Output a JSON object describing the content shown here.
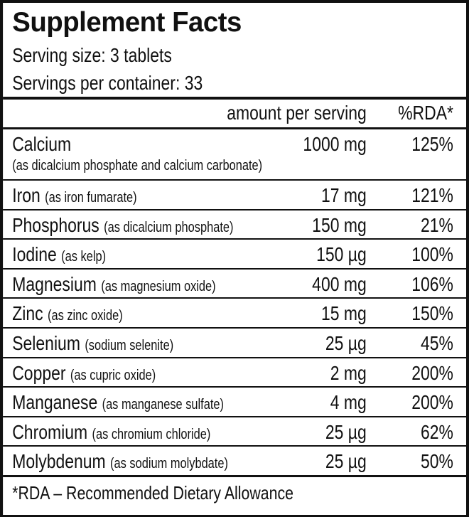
{
  "title": "Supplement Facts",
  "serving_size": "Serving size: 3 tablets",
  "servings_per_container": "Servings per container: 33",
  "header": {
    "amount": "amount per serving",
    "rda": "%RDA*"
  },
  "rows": [
    {
      "name": "Calcium",
      "note": "(as dicalcium phosphate and calcium carbonate)",
      "amount": "1000 mg",
      "rda": "125%"
    },
    {
      "name": "Iron",
      "note": "(as iron fumarate)",
      "amount": "17 mg",
      "rda": "121%"
    },
    {
      "name": "Phosphorus",
      "note": "(as dicalcium phosphate)",
      "amount": "150 mg",
      "rda": "21%"
    },
    {
      "name": "Iodine",
      "note": "(as kelp)",
      "amount": "150 µg",
      "rda": "100%"
    },
    {
      "name": "Magnesium",
      "note": "(as magnesium oxide)",
      "amount": "400 mg",
      "rda": "106%"
    },
    {
      "name": "Zinc",
      "note": "(as zinc oxide)",
      "amount": "15 mg",
      "rda": "150%"
    },
    {
      "name": "Selenium",
      "note": "(sodium selenite)",
      "amount": "25 µg",
      "rda": "45%"
    },
    {
      "name": "Copper",
      "note": "(as cupric oxide)",
      "amount": "2 mg",
      "rda": "200%"
    },
    {
      "name": "Manganese",
      "note": "(as manganese sulfate)",
      "amount": "4 mg",
      "rda": "200%"
    },
    {
      "name": "Chromium",
      "note": "(as chromium chloride)",
      "amount": "25 µg",
      "rda": "62%"
    },
    {
      "name": "Molybdenum",
      "note": "(as sodium molybdate)",
      "amount": "25 µg",
      "rda": "50%"
    }
  ],
  "footnote": "*RDA – Recommended Dietary Allowance"
}
